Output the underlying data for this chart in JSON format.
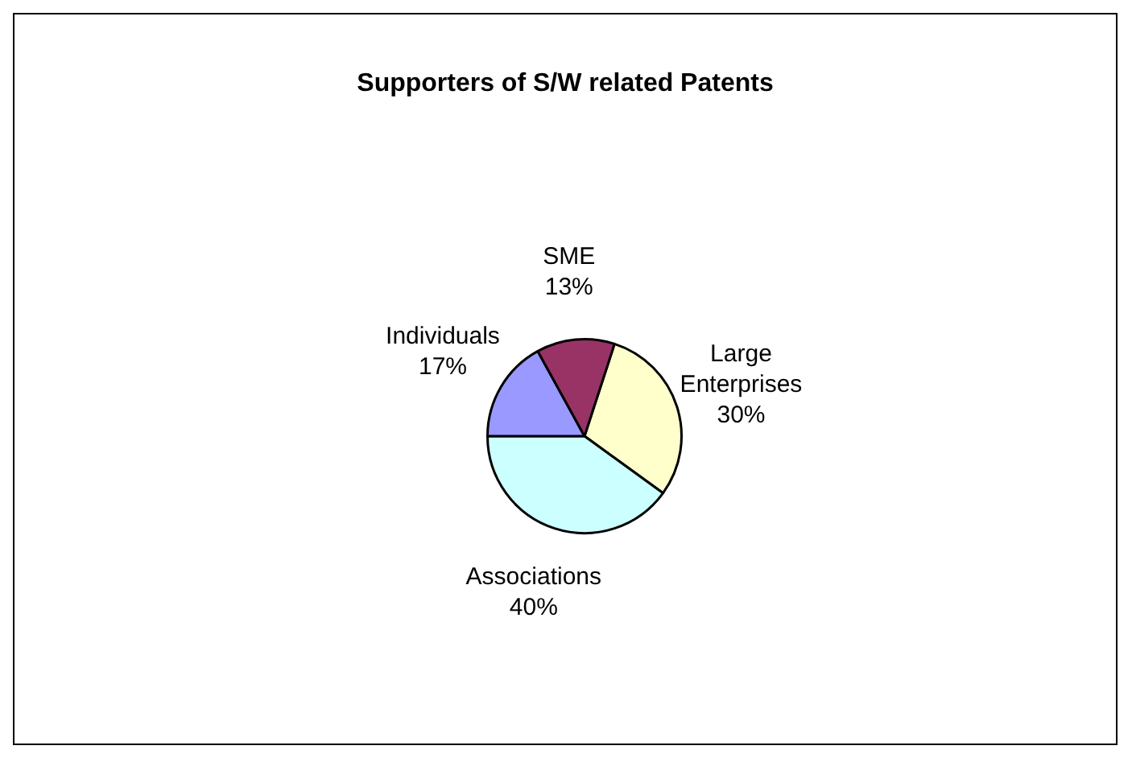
{
  "chart_data": {
    "type": "pie",
    "title": "Supporters of S/W related Patents",
    "categories": [
      "Large Enterprises",
      "Associations",
      "Individuals",
      "SME"
    ],
    "values": [
      30,
      40,
      17,
      13
    ],
    "colors": [
      "#ffffcc",
      "#ccffff",
      "#9999ff",
      "#993366"
    ],
    "value_labels": [
      "30%",
      "40%",
      "17%",
      "13%"
    ],
    "legend": false
  }
}
